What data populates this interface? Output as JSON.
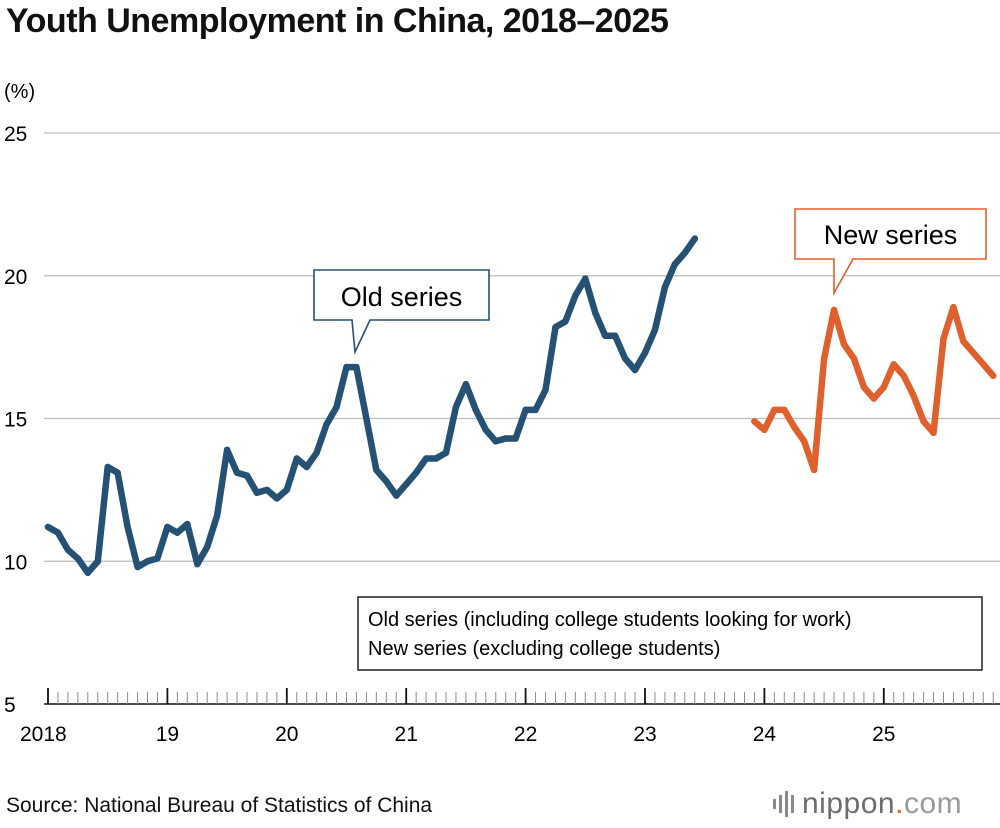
{
  "title": "Youth Unemployment in China, 2018–2025",
  "source": "Source: National Bureau of Statistics of China",
  "brand": {
    "name": "nippon",
    "dot": ".",
    "tld": "com"
  },
  "chart_data": {
    "type": "line",
    "title": "Youth Unemployment in China, 2018–2025",
    "ylabel": "(%)",
    "xlabel": "",
    "ylim": [
      5,
      25
    ],
    "yticks": [
      5,
      10,
      15,
      20,
      25
    ],
    "x_year_labels": [
      "2018",
      "19",
      "20",
      "21",
      "22",
      "23",
      "24",
      "25"
    ],
    "grid": true,
    "legend_position": "lower-right",
    "legend": [
      "Old series (including college students looking for work)",
      "New series (excluding college students)"
    ],
    "series": [
      {
        "name": "Old series",
        "callout": "Old series",
        "color": "#245174",
        "start": "2018-01",
        "values": [
          11.2,
          11.0,
          10.4,
          10.1,
          9.6,
          10.0,
          13.3,
          13.1,
          11.2,
          9.8,
          10.0,
          10.1,
          11.2,
          11.0,
          11.3,
          9.9,
          10.5,
          11.6,
          13.9,
          13.1,
          13.0,
          12.4,
          12.5,
          12.2,
          12.5,
          13.6,
          13.3,
          13.8,
          14.8,
          15.4,
          16.8,
          16.8,
          15.0,
          13.2,
          12.8,
          12.3,
          12.7,
          13.1,
          13.6,
          13.6,
          13.8,
          15.4,
          16.2,
          15.3,
          14.6,
          14.2,
          14.3,
          14.3,
          15.3,
          15.3,
          16.0,
          18.2,
          18.4,
          19.3,
          19.9,
          18.7,
          17.9,
          17.9,
          17.1,
          16.7,
          17.3,
          18.1,
          19.6,
          20.4,
          20.8,
          21.3
        ]
      },
      {
        "name": "New series",
        "callout": "New series",
        "color": "#e0602d",
        "start": "2023-12",
        "values": [
          14.9,
          14.6,
          15.3,
          15.3,
          14.7,
          14.2,
          13.2,
          17.1,
          18.8,
          17.6,
          17.1,
          16.1,
          15.7,
          16.1,
          16.9,
          16.5,
          15.8,
          14.9,
          14.5,
          17.8,
          18.9,
          17.7,
          17.3,
          16.9,
          16.5
        ]
      }
    ]
  }
}
